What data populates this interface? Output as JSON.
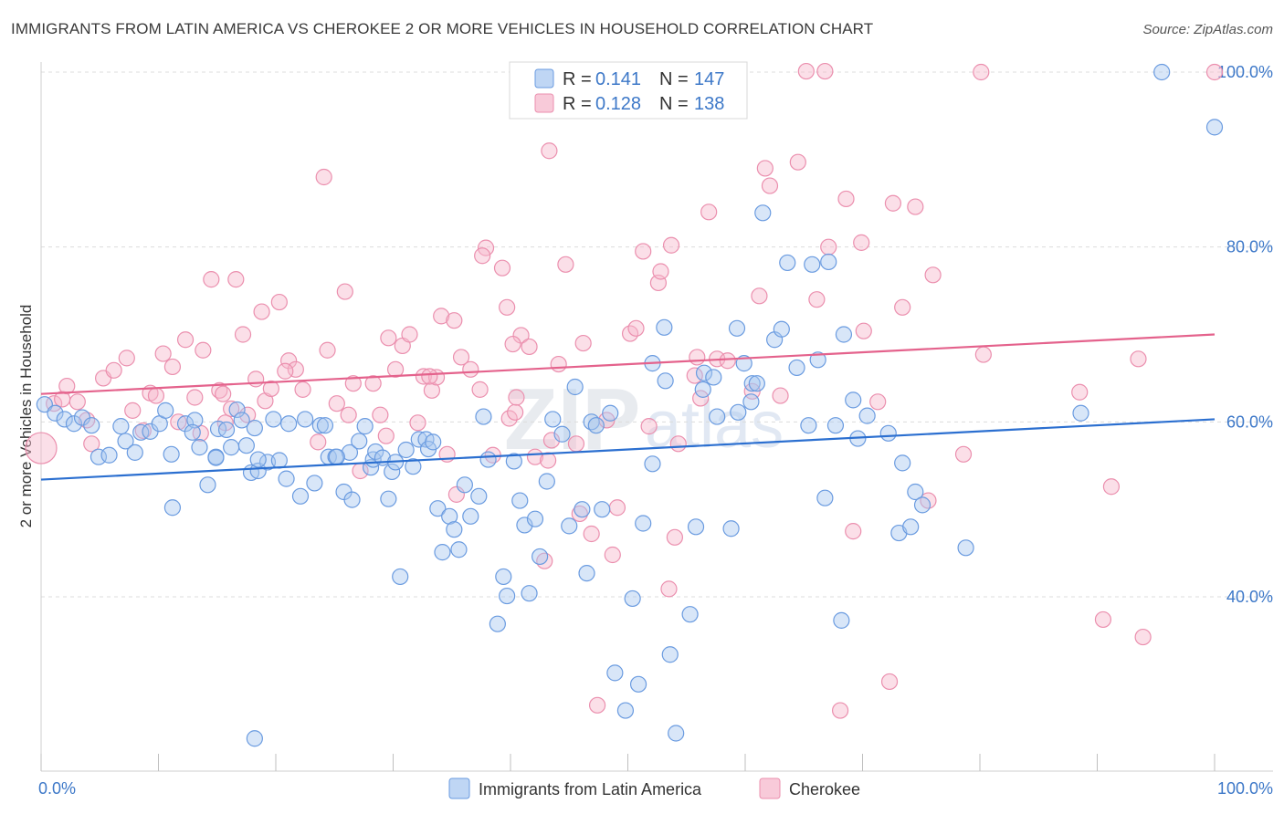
{
  "title": "IMMIGRANTS FROM LATIN AMERICA VS CHEROKEE 2 OR MORE VEHICLES IN HOUSEHOLD CORRELATION CHART",
  "source": "Source: ZipAtlas.com",
  "watermark": {
    "zip": "ZIP",
    "atlas": "atlas"
  },
  "colors": {
    "blue_fill": "#a9c8f0",
    "blue_stroke": "#6a9be0",
    "blue_line": "#2b6fd0",
    "pink_fill": "#f6b8cc",
    "pink_stroke": "#eb8fae",
    "pink_line": "#e4628c",
    "axis_text": "#3d78c8",
    "grid": "#dcdcdc"
  },
  "legend": {
    "r_label": "R =",
    "n_label": "N =",
    "series": [
      {
        "r": "0.141",
        "n": "147"
      },
      {
        "r": "0.128",
        "n": "138"
      }
    ]
  },
  "chart_data": {
    "type": "scatter",
    "title": "IMMIGRANTS FROM LATIN AMERICA VS CHEROKEE 2 OR MORE VEHICLES IN HOUSEHOLD CORRELATION CHART",
    "xlabel": "",
    "ylabel": "2 or more Vehicles in Household",
    "xlim": [
      0,
      100
    ],
    "ylim": [
      20,
      102
    ],
    "x_tick_labels": [
      "0.0%",
      "100.0%"
    ],
    "y_ticks": [
      40,
      60,
      80,
      100
    ],
    "y_tick_labels": [
      "40.0%",
      "60.0%",
      "80.0%",
      "100.0%"
    ],
    "grid": true,
    "legend_position": "top-center",
    "series": [
      {
        "name": "Immigrants from Latin America",
        "color": "#6a9be0",
        "trend": {
          "x": [
            0,
            100
          ],
          "y": [
            53.4,
            60.3
          ]
        },
        "points": [
          [
            0.3,
            62
          ],
          [
            1.2,
            61
          ],
          [
            2,
            60.3
          ],
          [
            2.8,
            59.8
          ],
          [
            3.5,
            60.5
          ],
          [
            4.3,
            59.6
          ],
          [
            4.9,
            56
          ],
          [
            5.8,
            56.2
          ],
          [
            6.8,
            59.5
          ],
          [
            7.2,
            57.8
          ],
          [
            8,
            56.5
          ],
          [
            8.5,
            58.8
          ],
          [
            9.3,
            58.9
          ],
          [
            10.1,
            59.8
          ],
          [
            11.1,
            56.3
          ],
          [
            11.2,
            50.2
          ],
          [
            10.6,
            61.3
          ],
          [
            12.3,
            59.8
          ],
          [
            13.1,
            60.2
          ],
          [
            12.9,
            58.8
          ],
          [
            13.5,
            57.1
          ],
          [
            14.2,
            52.8
          ],
          [
            14.9,
            56
          ],
          [
            15.1,
            59.2
          ],
          [
            16.2,
            57.1
          ],
          [
            17.5,
            57.3
          ],
          [
            18.2,
            59.3
          ],
          [
            15.8,
            59.1
          ],
          [
            16.7,
            61.4
          ],
          [
            17.1,
            60.2
          ],
          [
            17.9,
            54.2
          ],
          [
            18.5,
            54.4
          ],
          [
            19.3,
            55.4
          ],
          [
            19.8,
            60.3
          ],
          [
            20.3,
            55.6
          ],
          [
            20.9,
            53.5
          ],
          [
            21.1,
            59.8
          ],
          [
            22.1,
            51.5
          ],
          [
            22.5,
            60.3
          ],
          [
            23.3,
            53
          ],
          [
            23.8,
            59.6
          ],
          [
            24.2,
            59.6
          ],
          [
            24.5,
            56
          ],
          [
            25.1,
            56
          ],
          [
            25.8,
            52
          ],
          [
            26.3,
            56.5
          ],
          [
            26.5,
            51.1
          ],
          [
            27.1,
            57.8
          ],
          [
            27.6,
            59.5
          ],
          [
            28.1,
            54.8
          ],
          [
            28.3,
            55.7
          ],
          [
            28.5,
            56.6
          ],
          [
            29.1,
            55.9
          ],
          [
            29.6,
            51.2
          ],
          [
            29.9,
            54.3
          ],
          [
            30.2,
            55.4
          ],
          [
            30.6,
            42.3
          ],
          [
            31.1,
            56.8
          ],
          [
            31.7,
            54.9
          ],
          [
            32.2,
            58
          ],
          [
            32.8,
            58
          ],
          [
            33,
            56.9
          ],
          [
            33.4,
            57.7
          ],
          [
            33.8,
            50.1
          ],
          [
            34.2,
            45.1
          ],
          [
            34.8,
            49.2
          ],
          [
            35.2,
            47.7
          ],
          [
            35.6,
            45.4
          ],
          [
            36.1,
            52.8
          ],
          [
            36.6,
            49.2
          ],
          [
            37.3,
            51.5
          ],
          [
            38.1,
            55.7
          ],
          [
            37.7,
            60.6
          ],
          [
            38.9,
            36.9
          ],
          [
            39.4,
            42.3
          ],
          [
            39.7,
            40.1
          ],
          [
            40.3,
            55.5
          ],
          [
            40.8,
            51
          ],
          [
            41.2,
            48.2
          ],
          [
            41.6,
            40.4
          ],
          [
            42.1,
            48.9
          ],
          [
            42.5,
            44.6
          ],
          [
            43.1,
            53.2
          ],
          [
            43.6,
            60.3
          ],
          [
            44.4,
            58.6
          ],
          [
            45,
            48.1
          ],
          [
            45.5,
            64
          ],
          [
            46.1,
            50
          ],
          [
            46.5,
            42.7
          ],
          [
            46.9,
            60
          ],
          [
            47.3,
            59.6
          ],
          [
            47.8,
            50
          ],
          [
            48.5,
            61
          ],
          [
            48.9,
            31.3
          ],
          [
            49.8,
            27
          ],
          [
            50.4,
            39.8
          ],
          [
            50.9,
            30
          ],
          [
            51.3,
            48.4
          ],
          [
            52.1,
            55.2
          ],
          [
            52.1,
            66.7
          ],
          [
            53.1,
            70.8
          ],
          [
            53.2,
            64.7
          ],
          [
            53.6,
            33.4
          ],
          [
            54.1,
            24.4
          ],
          [
            55.3,
            38
          ],
          [
            55.8,
            48
          ],
          [
            56.4,
            63.7
          ],
          [
            56.5,
            65.6
          ],
          [
            57.3,
            65.1
          ],
          [
            57.6,
            60.6
          ],
          [
            58.8,
            47.8
          ],
          [
            59.3,
            70.7
          ],
          [
            59.4,
            61.1
          ],
          [
            59.9,
            66.7
          ],
          [
            60.5,
            62.3
          ],
          [
            60.6,
            64.4
          ],
          [
            61,
            64.4
          ],
          [
            61.5,
            83.9
          ],
          [
            62.5,
            69.4
          ],
          [
            63.1,
            70.6
          ],
          [
            63.6,
            78.2
          ],
          [
            64.4,
            66.2
          ],
          [
            65.4,
            59.6
          ],
          [
            65.7,
            78.0
          ],
          [
            66.2,
            67.1
          ],
          [
            66.8,
            51.3
          ],
          [
            67.1,
            78.3
          ],
          [
            67.7,
            59.6
          ],
          [
            68.2,
            37.3
          ],
          [
            68.4,
            70
          ],
          [
            69.2,
            62.5
          ],
          [
            69.6,
            58.1
          ],
          [
            70.4,
            60.7
          ],
          [
            72.2,
            58.7
          ],
          [
            73.1,
            47.3
          ],
          [
            73.4,
            55.3
          ],
          [
            74.1,
            48
          ],
          [
            74.5,
            52
          ],
          [
            75.1,
            50.5
          ],
          [
            78.8,
            45.6
          ],
          [
            88.6,
            61
          ],
          [
            95.5,
            100
          ],
          [
            100,
            93.7
          ],
          [
            18.2,
            23.8
          ],
          [
            14.9,
            55.9
          ],
          [
            25.2,
            56
          ],
          [
            18.5,
            55.7
          ]
        ]
      },
      {
        "name": "Cherokee",
        "color": "#eb8fae",
        "trend": {
          "x": [
            0,
            100
          ],
          "y": [
            63.2,
            70.0
          ]
        },
        "points": [
          [
            0,
            57
          ],
          [
            1.1,
            62.1
          ],
          [
            1.8,
            62.6
          ],
          [
            2.2,
            64.1
          ],
          [
            3.1,
            62.3
          ],
          [
            4.3,
            57.5
          ],
          [
            5.3,
            65
          ],
          [
            6.2,
            65.9
          ],
          [
            7.3,
            67.3
          ],
          [
            7.8,
            61.3
          ],
          [
            8.7,
            59
          ],
          [
            9.3,
            63.3
          ],
          [
            9.8,
            63
          ],
          [
            10.4,
            67.8
          ],
          [
            11.2,
            66.3
          ],
          [
            11.7,
            60
          ],
          [
            12.3,
            69.4
          ],
          [
            13.1,
            62.8
          ],
          [
            13.6,
            58.7
          ],
          [
            14.5,
            76.3
          ],
          [
            15.2,
            63.6
          ],
          [
            15.7,
            59.9
          ],
          [
            16.2,
            61.5
          ],
          [
            16.6,
            76.3
          ],
          [
            17.2,
            70
          ],
          [
            17.6,
            60.8
          ],
          [
            18.3,
            64.9
          ],
          [
            18.8,
            72.6
          ],
          [
            19.1,
            62.4
          ],
          [
            19.6,
            63.8
          ],
          [
            20.3,
            73.7
          ],
          [
            21.1,
            67
          ],
          [
            21.7,
            66
          ],
          [
            22.3,
            63.7
          ],
          [
            23.6,
            57.7
          ],
          [
            24.1,
            88
          ],
          [
            24.4,
            68.2
          ],
          [
            25.2,
            62.1
          ],
          [
            25.9,
            74.9
          ],
          [
            26.6,
            64.4
          ],
          [
            27.2,
            54.4
          ],
          [
            28.3,
            64.4
          ],
          [
            28.9,
            60.8
          ],
          [
            29.6,
            69.6
          ],
          [
            30.2,
            66
          ],
          [
            30.8,
            68.7
          ],
          [
            31.4,
            70
          ],
          [
            32.1,
            59.9
          ],
          [
            32.6,
            65.2
          ],
          [
            33.3,
            63.6
          ],
          [
            33.7,
            65.1
          ],
          [
            34.1,
            72.1
          ],
          [
            34.6,
            56.3
          ],
          [
            35.2,
            71.6
          ],
          [
            35.8,
            67.4
          ],
          [
            36.6,
            66
          ],
          [
            37.4,
            63.7
          ],
          [
            37.9,
            79.9
          ],
          [
            38.5,
            56.2
          ],
          [
            39.3,
            77.6
          ],
          [
            39.9,
            60.4
          ],
          [
            40.4,
            61.1
          ],
          [
            40.9,
            69.9
          ],
          [
            41.6,
            68.6
          ],
          [
            42.1,
            56
          ],
          [
            43.2,
            55.6
          ],
          [
            44.1,
            66.6
          ],
          [
            44.7,
            78
          ],
          [
            45.6,
            57.5
          ],
          [
            46.2,
            69
          ],
          [
            46.9,
            47.2
          ],
          [
            47.4,
            27.6
          ],
          [
            48.2,
            60.2
          ],
          [
            48.7,
            44.8
          ],
          [
            49.1,
            50.2
          ],
          [
            50.2,
            70.1
          ],
          [
            50.7,
            70.7
          ],
          [
            51.3,
            79.5
          ],
          [
            51.8,
            59.5
          ],
          [
            52.6,
            75.9
          ],
          [
            52.8,
            77.2
          ],
          [
            53.7,
            80.2
          ],
          [
            54,
            46.8
          ],
          [
            54.3,
            57.5
          ],
          [
            55.7,
            65.3
          ],
          [
            55.9,
            67.4
          ],
          [
            56.2,
            62.7
          ],
          [
            56.9,
            84
          ],
          [
            57.6,
            67.2
          ],
          [
            58.5,
            67
          ],
          [
            60.6,
            63.5
          ],
          [
            61.2,
            74.4
          ],
          [
            61.7,
            89
          ],
          [
            62.1,
            87
          ],
          [
            63,
            63
          ],
          [
            64.5,
            89.7
          ],
          [
            66.1,
            74
          ],
          [
            67.1,
            80
          ],
          [
            68.1,
            27
          ],
          [
            68.6,
            85.5
          ],
          [
            69.2,
            47.5
          ],
          [
            69.9,
            80.5
          ],
          [
            70.1,
            70.4
          ],
          [
            71.3,
            62.3
          ],
          [
            72.3,
            30.3
          ],
          [
            72.6,
            85
          ],
          [
            73.4,
            73.1
          ],
          [
            74.5,
            84.6
          ],
          [
            75.6,
            51
          ],
          [
            76,
            76.8
          ],
          [
            78.6,
            56.3
          ],
          [
            80.1,
            100
          ],
          [
            80.3,
            67.7
          ],
          [
            88.5,
            63.4
          ],
          [
            90.5,
            37.4
          ],
          [
            91.2,
            52.6
          ],
          [
            93.5,
            67.2
          ],
          [
            93.9,
            35.4
          ],
          [
            100,
            100
          ],
          [
            65.2,
            100.1
          ],
          [
            66.8,
            100.1
          ],
          [
            43.3,
            91
          ],
          [
            37.6,
            79
          ],
          [
            39.7,
            73.1
          ],
          [
            40.2,
            68.9
          ],
          [
            43.5,
            57.9
          ],
          [
            35.4,
            51.7
          ],
          [
            29.4,
            58.4
          ],
          [
            33.1,
            65.2
          ],
          [
            42.9,
            44.1
          ],
          [
            53.5,
            40.9
          ],
          [
            45.9,
            49.5
          ],
          [
            40.5,
            62.8
          ],
          [
            20.8,
            65.8
          ],
          [
            26.2,
            60.8
          ],
          [
            15.5,
            63.2
          ],
          [
            13.8,
            68.2
          ],
          [
            3.9,
            60.2
          ]
        ]
      }
    ]
  }
}
